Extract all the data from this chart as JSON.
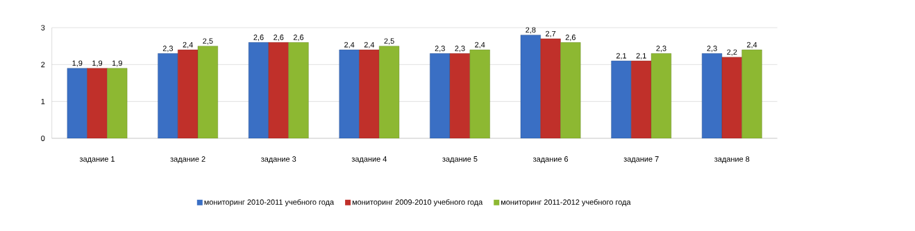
{
  "chart_data": {
    "type": "bar",
    "categories": [
      "задание 1",
      "задание 2",
      "задание 3",
      "задание 4",
      "задание 5",
      "задание 6",
      "задание 7",
      "задание 8"
    ],
    "series": [
      {
        "name": "мониторинг 2010-2011 учебного года",
        "color": "#3a6fc4",
        "values": [
          1.9,
          2.3,
          2.6,
          2.4,
          2.3,
          2.8,
          2.1,
          2.3
        ],
        "value_labels": [
          "1,9",
          "2,3",
          "2,6",
          "2,4",
          "2,3",
          "2,8",
          "2,1",
          "2,3"
        ]
      },
      {
        "name": "мониторинг 2009-2010 учебного года",
        "color": "#c0302a",
        "values": [
          1.9,
          2.4,
          2.6,
          2.4,
          2.3,
          2.7,
          2.1,
          2.2
        ],
        "value_labels": [
          "1,9",
          "2,4",
          "2,6",
          "2,4",
          "2,3",
          "2,7",
          "2,1",
          "2,2"
        ]
      },
      {
        "name": "мониторинг 2011-2012 учебного года",
        "color": "#8db832",
        "values": [
          1.9,
          2.5,
          2.6,
          2.5,
          2.4,
          2.6,
          2.3,
          2.4
        ],
        "value_labels": [
          "1,9",
          "2,5",
          "2,6",
          "2,5",
          "2,4",
          "2,6",
          "2,3",
          "2,4"
        ]
      }
    ],
    "ylim": [
      0,
      3
    ],
    "yticks": [
      0,
      1,
      2,
      3
    ],
    "grid": "y",
    "legend": "bottom"
  }
}
